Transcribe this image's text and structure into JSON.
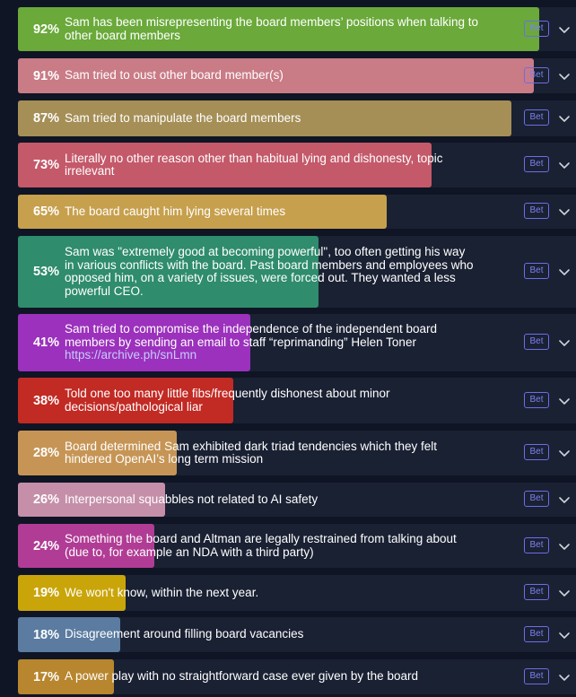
{
  "bet_label": "Bet",
  "rows": [
    {
      "percent_text": "92%",
      "value": 0.92,
      "color": "#6aa93a",
      "lines": [
        "Sam has been misrepresenting the board members’ positions when talking to",
        "other board members"
      ]
    },
    {
      "percent_text": "91%",
      "value": 0.91,
      "color": "#c97b86",
      "lines": [
        "Sam tried to oust other board member(s)"
      ]
    },
    {
      "percent_text": "87%",
      "value": 0.87,
      "color": "#a58f57",
      "lines": [
        "Sam tried to manipulate the board members"
      ]
    },
    {
      "percent_text": "73%",
      "value": 0.73,
      "color": "#c4596a",
      "lines": [
        "Literally no other reason other than habitual lying and dishonesty, topic",
        "irrelevant"
      ]
    },
    {
      "percent_text": "65%",
      "value": 0.65,
      "color": "#c7a04d",
      "lines": [
        "The board caught him lying several times"
      ]
    },
    {
      "percent_text": "53%",
      "value": 0.53,
      "color": "#2f8c6c",
      "lines": [
        "Sam was \"extremely good at becoming powerful\", too often getting his way",
        "in various conflicts with the board. Past board members and employees who",
        "opposed him, on a variety of issues, were forced out. They wanted a less",
        "powerful CEO."
      ]
    },
    {
      "percent_text": "41%",
      "value": 0.41,
      "color": "#9b31bc",
      "lines": [
        "Sam tried to compromise the independence of the independent board",
        "members by sending an email to staff “reprimanding” Helen Toner"
      ],
      "link": "https://archive.ph/snLmn"
    },
    {
      "percent_text": "38%",
      "value": 0.38,
      "color": "#c22a24",
      "lines": [
        "Told one too many little fibs/frequently dishonest about minor",
        "decisions/pathological liar"
      ]
    },
    {
      "percent_text": "28%",
      "value": 0.28,
      "color": "#c69555",
      "lines": [
        "Board determined Sam exhibited dark triad tendencies which they felt",
        "hindered OpenAI’s long term mission"
      ]
    },
    {
      "percent_text": "26%",
      "value": 0.26,
      "color": "#c58fa9",
      "lines": [
        "Interpersonal squabbles not related to AI safety"
      ]
    },
    {
      "percent_text": "24%",
      "value": 0.24,
      "color": "#b13c95",
      "lines": [
        "Something the board and Altman are legally restrained from talking about",
        "(due to, for example an NDA with a third party)"
      ]
    },
    {
      "percent_text": "19%",
      "value": 0.19,
      "color": "#c9a50a",
      "lines": [
        "We won't know, within the next year."
      ]
    },
    {
      "percent_text": "18%",
      "value": 0.18,
      "color": "#5b7ba0",
      "lines": [
        "Disagreement around filling board vacancies"
      ]
    },
    {
      "percent_text": "17%",
      "value": 0.17,
      "color": "#b8862e",
      "lines": [
        "A power play with no straightforward case ever given by the board"
      ]
    }
  ]
}
